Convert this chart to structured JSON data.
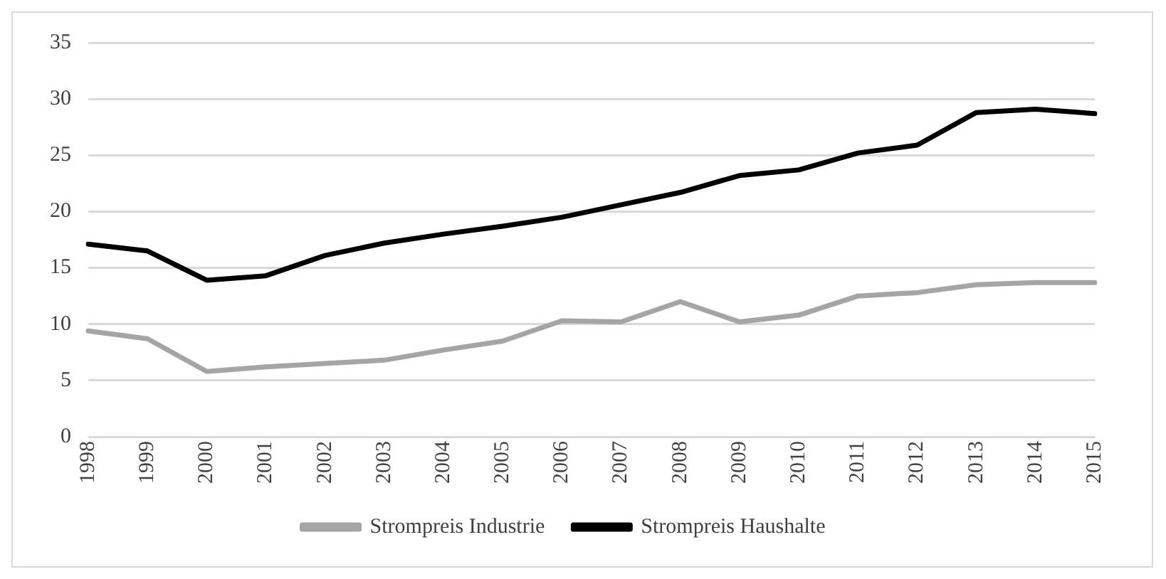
{
  "chart_data": {
    "type": "line",
    "categories": [
      "1998",
      "1999",
      "2000",
      "2001",
      "2002",
      "2003",
      "2004",
      "2005",
      "2006",
      "2007",
      "2008",
      "2009",
      "2010",
      "2011",
      "2012",
      "2013",
      "2014",
      "2015"
    ],
    "series": [
      {
        "name": "Strompreis Industrie",
        "color": "#a5a5a5",
        "values": [
          9.4,
          8.7,
          5.8,
          6.2,
          6.5,
          6.8,
          7.7,
          8.5,
          10.3,
          10.2,
          12.0,
          10.2,
          10.8,
          12.5,
          12.8,
          13.5,
          13.7,
          13.7
        ]
      },
      {
        "name": "Strompreis Haushalte",
        "color": "#000000",
        "values": [
          17.1,
          16.5,
          13.9,
          14.3,
          16.1,
          17.2,
          18.0,
          18.7,
          19.5,
          20.6,
          21.7,
          23.2,
          23.7,
          25.2,
          25.9,
          28.8,
          29.1,
          28.7
        ]
      }
    ],
    "ylim": [
      0,
      35
    ],
    "yticks": [
      0,
      5,
      10,
      15,
      20,
      25,
      30,
      35
    ],
    "grid": "y",
    "legend": "bottom",
    "marker": "none",
    "line_style": "solid"
  }
}
